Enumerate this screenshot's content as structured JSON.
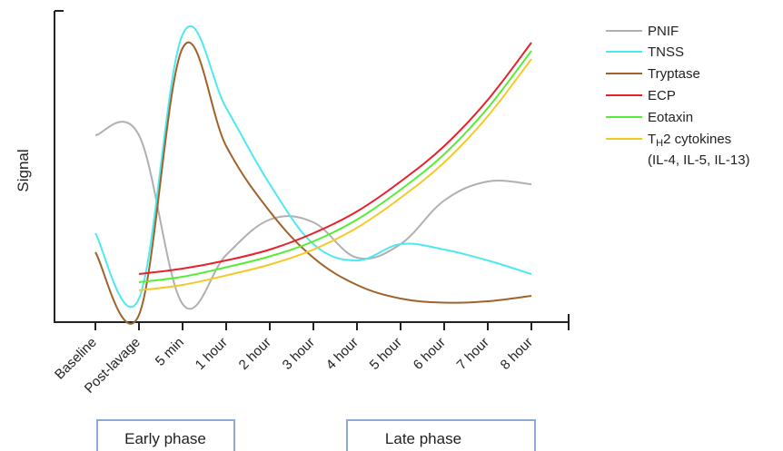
{
  "chart_data": {
    "type": "line",
    "title": "",
    "ylabel": "Signal",
    "xlabel": "",
    "categories": [
      "Baseline",
      "Post-lavage",
      "5 min",
      "1 hour",
      "2 hour",
      "3 hour",
      "4 hour",
      "5 hour",
      "6 hour",
      "7 hour",
      "8 hour"
    ],
    "grid": false,
    "legend_position": "top-right",
    "series": [
      {
        "name": "PNIF",
        "color": "#b0b0b0",
        "points": [
          [
            0,
            6.6
          ],
          [
            1,
            6.6
          ],
          [
            2,
            0.4
          ],
          [
            3,
            2.2
          ],
          [
            4,
            3.5
          ],
          [
            5,
            3.4
          ],
          [
            6,
            2.1
          ],
          [
            7,
            2.6
          ],
          [
            8,
            4.2
          ],
          [
            9,
            4.9
          ],
          [
            10,
            4.8
          ]
        ]
      },
      {
        "name": "TNSS",
        "color": "#4de8f0",
        "points": [
          [
            0,
            3.0
          ],
          [
            1,
            0.6
          ],
          [
            2,
            10.3
          ],
          [
            3,
            7.6
          ],
          [
            4,
            4.8
          ],
          [
            5,
            2.6
          ],
          [
            6,
            2.0
          ],
          [
            7,
            2.6
          ],
          [
            8,
            2.4
          ],
          [
            9,
            2.0
          ],
          [
            10,
            1.5
          ]
        ]
      },
      {
        "name": "Tryptase",
        "color": "#a0622a",
        "points": [
          [
            0,
            2.3
          ],
          [
            1,
            0.0
          ],
          [
            2,
            9.8
          ],
          [
            3,
            6.2
          ],
          [
            4,
            3.8
          ],
          [
            5,
            2.1
          ],
          [
            6,
            1.1
          ],
          [
            7,
            0.6
          ],
          [
            8,
            0.45
          ],
          [
            9,
            0.5
          ],
          [
            10,
            0.7
          ]
        ]
      },
      {
        "name": "ECP",
        "color": "#e8202a",
        "points": [
          [
            1,
            1.5
          ],
          [
            2,
            1.7
          ],
          [
            3,
            2.0
          ],
          [
            4,
            2.4
          ],
          [
            5,
            3.0
          ],
          [
            6,
            3.8
          ],
          [
            7,
            4.9
          ],
          [
            8,
            6.2
          ],
          [
            9,
            7.9
          ],
          [
            10,
            10.0
          ]
        ]
      },
      {
        "name": "Eotaxin",
        "color": "#55ee33",
        "points": [
          [
            1,
            1.2
          ],
          [
            2,
            1.4
          ],
          [
            3,
            1.75
          ],
          [
            4,
            2.15
          ],
          [
            5,
            2.7
          ],
          [
            6,
            3.5
          ],
          [
            7,
            4.6
          ],
          [
            8,
            5.9
          ],
          [
            9,
            7.6
          ],
          [
            10,
            9.7
          ]
        ]
      },
      {
        "name": "TH2 cytokines (IL-4, IL-5, IL-13)",
        "color": "#f5c828",
        "points": [
          [
            1,
            0.9
          ],
          [
            2,
            1.1
          ],
          [
            3,
            1.45
          ],
          [
            4,
            1.85
          ],
          [
            5,
            2.4
          ],
          [
            6,
            3.2
          ],
          [
            7,
            4.3
          ],
          [
            8,
            5.6
          ],
          [
            9,
            7.3
          ],
          [
            10,
            9.4
          ]
        ]
      }
    ],
    "ylim": [
      -0.6,
      11.5
    ],
    "xlim": [
      -1,
      11
    ]
  },
  "legend": [
    {
      "label": "PNIF",
      "color": "#b0b0b0"
    },
    {
      "label": "TNSS",
      "color": "#4de8f0"
    },
    {
      "label": "Tryptase",
      "color": "#a0622a"
    },
    {
      "label": "ECP",
      "color": "#e8202a"
    },
    {
      "label": "Eotaxin",
      "color": "#55ee33"
    },
    {
      "label_main": "T",
      "label_sub": "H",
      "label_rest": "2 cytokines",
      "label_line2": "(IL-4, IL-5, IL-13)",
      "color": "#f5c828"
    }
  ],
  "phases": {
    "early": "Early phase",
    "late": "Late phase",
    "border_color": "#8fa9d6"
  }
}
